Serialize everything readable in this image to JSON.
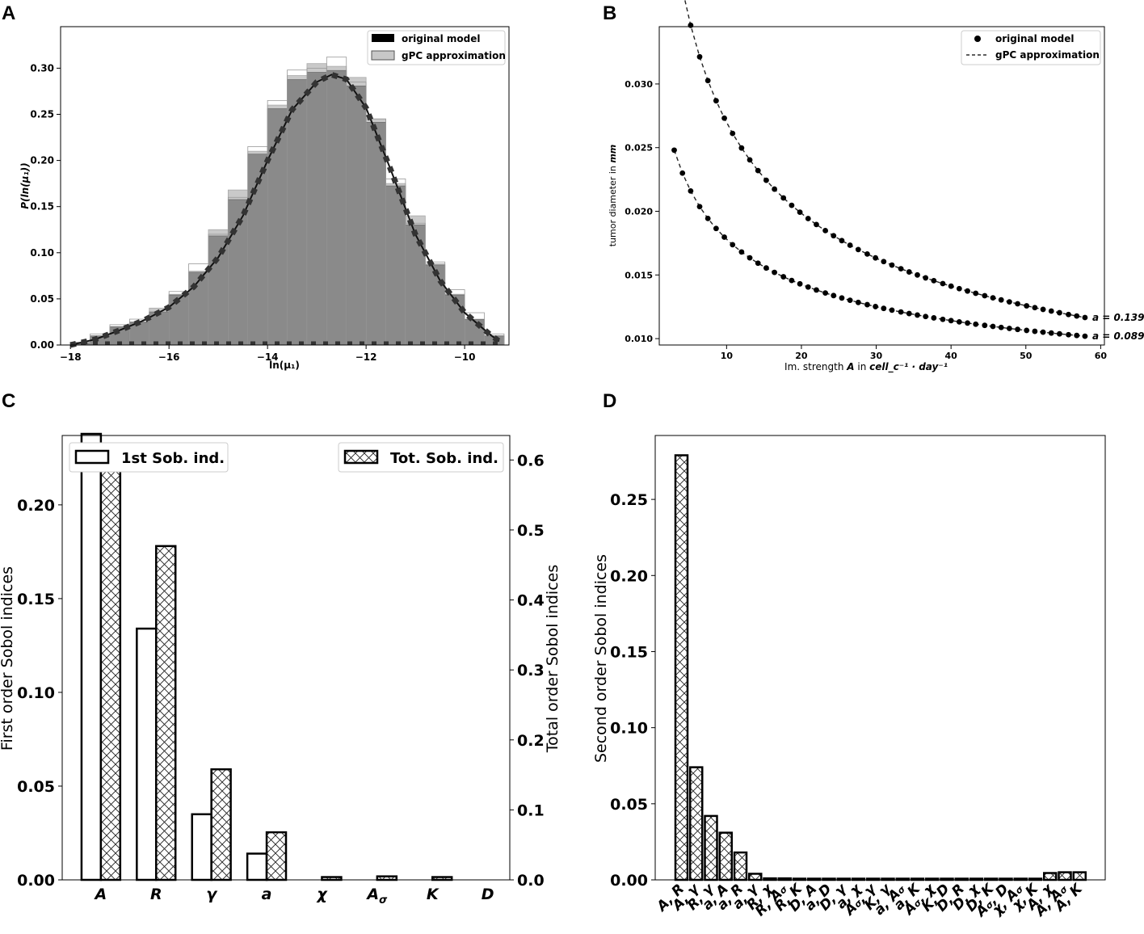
{
  "chart_data": [
    {
      "panel": "A",
      "type": "histogram",
      "xlabel": "ln(μ₁)",
      "ylabel": "P(ln(μ₁))",
      "xlim": [
        -18.2,
        -9.1
      ],
      "ylim": [
        0,
        0.345
      ],
      "xticks": [
        -18,
        -16,
        -14,
        -12,
        -10
      ],
      "yticks": [
        0.0,
        0.05,
        0.1,
        0.15,
        0.2,
        0.25,
        0.3
      ],
      "bin_edges": [
        -18.0,
        -17.6,
        -17.2,
        -16.8,
        -16.4,
        -16.0,
        -15.6,
        -15.2,
        -14.8,
        -14.4,
        -14.0,
        -13.6,
        -13.2,
        -12.8,
        -12.4,
        -12.0,
        -11.6,
        -11.2,
        -10.8,
        -10.4,
        -10.0,
        -9.6,
        -9.2
      ],
      "series": [
        {
          "name": "original model",
          "values": [
            0.003,
            0.012,
            0.022,
            0.028,
            0.036,
            0.058,
            0.088,
            0.12,
            0.16,
            0.215,
            0.265,
            0.298,
            0.3,
            0.312,
            0.285,
            0.245,
            0.18,
            0.132,
            0.09,
            0.06,
            0.035,
            0.012
          ]
        },
        {
          "name": "gPC approximation",
          "values": [
            0.002,
            0.01,
            0.02,
            0.025,
            0.04,
            0.055,
            0.08,
            0.125,
            0.168,
            0.21,
            0.26,
            0.292,
            0.305,
            0.302,
            0.29,
            0.245,
            0.175,
            0.14,
            0.088,
            0.055,
            0.028,
            0.01
          ]
        }
      ],
      "kde_points": [
        [
          -18,
          0
        ],
        [
          -17.5,
          0.006
        ],
        [
          -17,
          0.016
        ],
        [
          -16.5,
          0.027
        ],
        [
          -16,
          0.041
        ],
        [
          -15.5,
          0.063
        ],
        [
          -15,
          0.095
        ],
        [
          -14.5,
          0.14
        ],
        [
          -14,
          0.2
        ],
        [
          -13.5,
          0.255
        ],
        [
          -13,
          0.285
        ],
        [
          -12.7,
          0.293
        ],
        [
          -12.4,
          0.288
        ],
        [
          -12,
          0.257
        ],
        [
          -11.5,
          0.19
        ],
        [
          -11,
          0.12
        ],
        [
          -10.5,
          0.07
        ],
        [
          -10,
          0.035
        ],
        [
          -9.5,
          0.012
        ],
        [
          -9.3,
          0.004
        ]
      ],
      "legend": [
        "original model",
        "gPC approximation"
      ]
    },
    {
      "panel": "B",
      "type": "scatter+line",
      "xlabel_prefix": "Im. strength ",
      "xlabel_var": "A",
      "xlabel_mid": " in ",
      "xlabel_unit": "cell_c⁻¹ · day⁻¹",
      "ylabel_prefix": "tumor diameter in ",
      "ylabel_unit": "mm",
      "xlim": [
        1,
        60.5
      ],
      "ylim": [
        0.0095,
        0.0345
      ],
      "xticks": [
        10,
        20,
        30,
        40,
        50,
        60
      ],
      "yticks": [
        "0.010",
        "0.015",
        "0.020",
        "0.025",
        "0.030"
      ],
      "x": [
        3.0,
        4.1,
        5.2,
        6.4,
        7.5,
        8.6,
        9.7,
        10.8,
        12.0,
        13.1,
        14.2,
        15.3,
        16.4,
        17.6,
        18.7,
        19.8,
        20.9,
        22.0,
        23.2,
        24.3,
        25.4,
        26.5,
        27.6,
        28.8,
        29.9,
        31.0,
        32.1,
        33.3,
        34.4,
        35.5,
        36.6,
        37.7,
        38.9,
        40.0,
        41.1,
        42.2,
        43.3,
        44.5,
        45.6,
        46.7,
        47.8,
        48.9,
        50.1,
        51.2,
        52.3,
        53.4,
        54.5,
        55.7,
        56.8,
        57.9
      ],
      "series": [
        {
          "name": "a = 0.139",
          "coef": 0.1,
          "power": 0.5
        },
        {
          "name": "a = 0.089",
          "coef": 0.0497,
          "power": 0.5
        }
      ],
      "legend": [
        "original model",
        "gPC approximation"
      ]
    },
    {
      "panel": "C",
      "type": "bar",
      "categories": [
        "A",
        "R",
        "γ",
        "a",
        "χ",
        "A",
        "K",
        "D"
      ],
      "category_subscripts": [
        "",
        "",
        "",
        "",
        "",
        "σ",
        "",
        ""
      ],
      "series": [
        {
          "name": "1st Sob. ind.",
          "axis": "left",
          "values": [
            0.24,
            0.134,
            0.035,
            0.014,
            0.0,
            0.0,
            0.0,
            0.0
          ]
        },
        {
          "name": "Tot. Sob. ind.",
          "axis": "right",
          "values": [
            0.608,
            0.477,
            0.158,
            0.068,
            0.004,
            0.005,
            0.004,
            0.0
          ]
        }
      ],
      "ylabel_left": "First order Sobol indices",
      "ylabel_right": "Total order Sobol indices",
      "ylim_left": [
        0,
        0.237
      ],
      "ylim_right": [
        0,
        0.635
      ],
      "yticks_left": [
        "0.00",
        "0.05",
        "0.10",
        "0.15",
        "0.20"
      ],
      "yticks_right": [
        "0.0",
        "0.1",
        "0.2",
        "0.3",
        "0.4",
        "0.5",
        "0.6"
      ]
    },
    {
      "panel": "D",
      "type": "bar",
      "categories": [
        "A, R",
        "A, γ",
        "R, γ",
        "a, A",
        "a, R",
        "a, γ",
        "R, χ",
        "R, Aσ",
        "R, K",
        "D, A",
        "a, D",
        "D, γ",
        "a, χ",
        "Aσ, γ",
        "K, γ",
        "a, Aσ",
        "a, K",
        "Aσ, χ",
        "K, D",
        "D, R",
        "D, χ",
        "D, K",
        "Aσ, D",
        "χ, Aσ",
        "χ, K",
        "A, χ",
        "A, Aσ",
        "A, K"
      ],
      "values": [
        0.279,
        0.074,
        0.042,
        0.031,
        0.018,
        0.004,
        0.001,
        0.001,
        0.0008,
        0.0006,
        0.0004,
        0.0003,
        0.0003,
        0.0002,
        0.0002,
        0.0002,
        0.0001,
        0.0001,
        0.0001,
        0.0001,
        0.0001,
        0.0001,
        0.0001,
        0.0001,
        0.0001,
        0.0045,
        0.005,
        0.005
      ],
      "ylabel": "Second order Sobol indices",
      "ylim": [
        0,
        0.292
      ],
      "yticks": [
        "0.00",
        "0.05",
        "0.10",
        "0.15",
        "0.20",
        "0.25"
      ]
    }
  ],
  "panel_labels": {
    "a": "A",
    "b": "B",
    "c": "C",
    "d": "D"
  }
}
